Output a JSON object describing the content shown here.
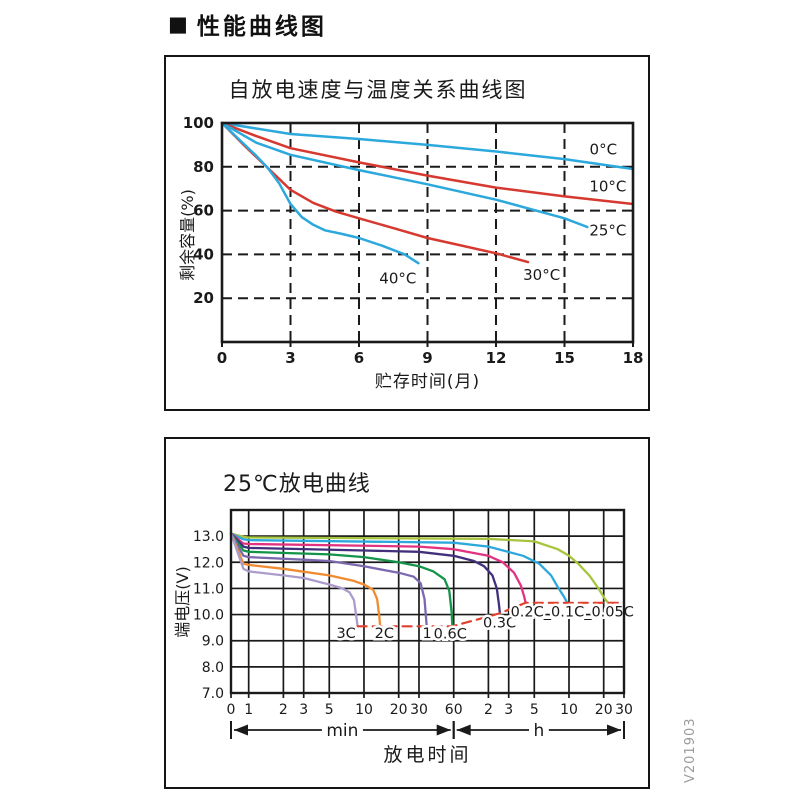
{
  "page": {
    "header": {
      "bullet": "■",
      "title": "性能曲线图"
    },
    "watermark": "V201903"
  },
  "chart_data": [
    {
      "type": "line",
      "title": "自放电速度与温度关系曲线图",
      "xlabel": "贮存时间(月)",
      "ylabel": "剩余容量(%)",
      "xlim": [
        0,
        18
      ],
      "ylim": [
        0,
        100
      ],
      "xticks": [
        0,
        3,
        6,
        9,
        12,
        15,
        18
      ],
      "yticks": [
        20,
        40,
        60,
        80,
        100
      ],
      "grid": "dashed",
      "axis_color": "#1a1a1a",
      "series": [
        {
          "name": "0°C",
          "color": "#2BA8DC",
          "points": [
            [
              0,
              100
            ],
            [
              3,
              95
            ],
            [
              6,
              92.7
            ],
            [
              9,
              90
            ],
            [
              12,
              87
            ],
            [
              15,
              83.5
            ],
            [
              18,
              79
            ]
          ],
          "label_at": [
            16.7,
            88
          ]
        },
        {
          "name": "10°C",
          "color": "#D6392F",
          "points": [
            [
              0,
              100
            ],
            [
              1.5,
              94
            ],
            [
              3,
              88.5
            ],
            [
              6,
              82
            ],
            [
              9,
              76
            ],
            [
              12,
              70.5
            ],
            [
              15,
              66.5
            ],
            [
              18,
              63
            ]
          ],
          "label_at": [
            16.9,
            71
          ]
        },
        {
          "name": "25°C",
          "color": "#2BA8DC",
          "points": [
            [
              0,
              100
            ],
            [
              1.5,
              91
            ],
            [
              3,
              85.5
            ],
            [
              6,
              78.5
            ],
            [
              9,
              72
            ],
            [
              12,
              65
            ],
            [
              15,
              56.5
            ],
            [
              16,
              52.5
            ]
          ],
          "label_at": [
            16.9,
            51
          ]
        },
        {
          "name": "30°C",
          "color": "#D6392F",
          "points": [
            [
              0,
              100
            ],
            [
              1,
              89.5
            ],
            [
              2,
              79.5
            ],
            [
              3,
              69.5
            ],
            [
              4,
              63.5
            ],
            [
              5,
              59.5
            ],
            [
              6,
              56.5
            ],
            [
              7.5,
              52
            ],
            [
              9,
              47.5
            ],
            [
              10.5,
              44
            ],
            [
              12,
              40.5
            ],
            [
              13.4,
              36.5
            ]
          ],
          "label_at": [
            14,
            30.5
          ]
        },
        {
          "name": "40°C",
          "color": "#2BA8DC",
          "points": [
            [
              0,
              100
            ],
            [
              0.5,
              95
            ],
            [
              1,
              90
            ],
            [
              1.5,
              85
            ],
            [
              2,
              79.5
            ],
            [
              2.5,
              72.5
            ],
            [
              3,
              63
            ],
            [
              3.5,
              57
            ],
            [
              4,
              53.5
            ],
            [
              4.5,
              51
            ],
            [
              5.2,
              49.5
            ],
            [
              6,
              47.5
            ],
            [
              7,
              44
            ],
            [
              8,
              40
            ],
            [
              8.6,
              36
            ]
          ],
          "label_at": [
            7.7,
            29
          ]
        }
      ]
    },
    {
      "type": "line",
      "title": "25℃放电曲线",
      "xlabel": "放电时间",
      "ylabel": "端电压(V)",
      "ylim": [
        7,
        14
      ],
      "yticks": [
        7,
        8,
        9,
        10,
        11,
        12,
        13
      ],
      "ytick_format": "one_decimal",
      "grid": "solid",
      "axis_color": "#1a1a1a",
      "x_axis": {
        "scale": "log-time-minutes",
        "ticks": [
          {
            "label": "0",
            "t": 0
          },
          {
            "label": "1",
            "t": 1
          },
          {
            "label": "2",
            "t": 2
          },
          {
            "label": "3",
            "t": 3
          },
          {
            "label": "5",
            "t": 5
          },
          {
            "label": "10",
            "t": 10
          },
          {
            "label": "20",
            "t": 20
          },
          {
            "label": "30",
            "t": 30
          },
          {
            "label": "60",
            "t": 60
          },
          {
            "label": "2",
            "t": 120
          },
          {
            "label": "3",
            "t": 180
          },
          {
            "label": "5",
            "t": 300
          },
          {
            "label": "10",
            "t": 600
          },
          {
            "label": "20",
            "t": 1200
          },
          {
            "label": "30",
            "t": 1800
          }
        ],
        "unit_spans": [
          {
            "label": "min",
            "from_t": 0,
            "to_t": 60
          },
          {
            "label": "h",
            "from_t": 60,
            "to_t": 1800
          }
        ]
      },
      "series": [
        {
          "name": "0.05C",
          "color": "#A6C53C",
          "points": [
            [
              0,
              13.1
            ],
            [
              0.7,
              12.97
            ],
            [
              1,
              12.95
            ],
            [
              120,
              12.9
            ],
            [
              300,
              12.8
            ],
            [
              480,
              12.5
            ],
            [
              600,
              12.25
            ],
            [
              720,
              11.95
            ],
            [
              900,
              11.5
            ],
            [
              1080,
              11.0
            ],
            [
              1230,
              10.6
            ],
            [
              1310,
              10.45
            ]
          ]
        },
        {
          "name": "0.1C",
          "color": "#2CA8DC",
          "points": [
            [
              0,
              13.1
            ],
            [
              0.7,
              12.88
            ],
            [
              1,
              12.85
            ],
            [
              60,
              12.75
            ],
            [
              120,
              12.6
            ],
            [
              240,
              12.25
            ],
            [
              330,
              11.95
            ],
            [
              420,
              11.5
            ],
            [
              480,
              11.05
            ],
            [
              540,
              10.7
            ],
            [
              580,
              10.45
            ]
          ]
        },
        {
          "name": "0.2C",
          "color": "#E23381",
          "points": [
            [
              0,
              13.1
            ],
            [
              0.7,
              12.72
            ],
            [
              1,
              12.7
            ],
            [
              30,
              12.6
            ],
            [
              60,
              12.5
            ],
            [
              120,
              12.25
            ],
            [
              160,
              12.0
            ],
            [
              200,
              11.6
            ],
            [
              230,
              11.1
            ],
            [
              245,
              10.7
            ],
            [
              252,
              10.45
            ]
          ]
        },
        {
          "name": "0.3C",
          "color": "#42307C",
          "points": [
            [
              0,
              13.1
            ],
            [
              0.7,
              12.6
            ],
            [
              1,
              12.55
            ],
            [
              10,
              12.45
            ],
            [
              30,
              12.4
            ],
            [
              60,
              12.25
            ],
            [
              90,
              12.05
            ],
            [
              110,
              11.85
            ],
            [
              130,
              11.5
            ],
            [
              142,
              11.0
            ],
            [
              148,
              10.4
            ],
            [
              151,
              10.05
            ]
          ]
        },
        {
          "name": "0.6C",
          "color": "#149448",
          "points": [
            [
              0,
              13.1
            ],
            [
              0.7,
              12.45
            ],
            [
              1,
              12.4
            ],
            [
              5,
              12.3
            ],
            [
              10,
              12.2
            ],
            [
              20,
              12.0
            ],
            [
              30,
              11.85
            ],
            [
              40,
              11.65
            ],
            [
              50,
              11.35
            ],
            [
              55,
              10.9
            ],
            [
              57.5,
              10.1
            ],
            [
              58.5,
              9.55
            ]
          ]
        },
        {
          "name": "1C",
          "color": "#7B68AE",
          "points": [
            [
              0,
              13.1
            ],
            [
              0.7,
              12.25
            ],
            [
              1,
              12.2
            ],
            [
              3,
              12.1
            ],
            [
              5,
              12.05
            ],
            [
              10,
              11.85
            ],
            [
              15,
              11.7
            ],
            [
              20,
              11.6
            ],
            [
              27,
              11.45
            ],
            [
              31,
              11.2
            ],
            [
              33.5,
              10.6
            ],
            [
              34.5,
              9.9
            ],
            [
              35,
              9.55
            ]
          ]
        },
        {
          "name": "2C",
          "color": "#EF8B31",
          "points": [
            [
              0,
              13.1
            ],
            [
              0.7,
              11.95
            ],
            [
              1,
              11.9
            ],
            [
              2,
              11.75
            ],
            [
              5,
              11.5
            ],
            [
              8,
              11.3
            ],
            [
              10,
              11.15
            ],
            [
              12,
              10.95
            ],
            [
              13,
              10.6
            ],
            [
              13.6,
              9.9
            ],
            [
              13.8,
              9.55
            ]
          ]
        },
        {
          "name": "3C",
          "color": "#AB9CCC",
          "points": [
            [
              0,
              13.1
            ],
            [
              0.7,
              11.75
            ],
            [
              1,
              11.65
            ],
            [
              2,
              11.5
            ],
            [
              3,
              11.4
            ],
            [
              5,
              11.15
            ],
            [
              6.5,
              11.0
            ],
            [
              7.5,
              10.85
            ],
            [
              8.2,
              10.55
            ],
            [
              8.6,
              9.9
            ],
            [
              8.8,
              9.55
            ]
          ]
        }
      ],
      "cutoff_line": {
        "color": "#E2402E",
        "style": "dashed",
        "points": [
          [
            8.8,
            9.55
          ],
          [
            58.5,
            9.55
          ],
          [
            151,
            10.05
          ],
          [
            252,
            10.45
          ],
          [
            1800,
            10.45
          ]
        ]
      },
      "labels": [
        {
          "text": "3C",
          "t": 7,
          "v": 9.3
        },
        {
          "text": "2C",
          "t": 15,
          "v": 9.3
        },
        {
          "text": "1C",
          "t": 39,
          "v": 9.3
        },
        {
          "text": "0.6C",
          "t": 56,
          "v": 9.27
        },
        {
          "text": "0.3C",
          "t": 150,
          "v": 9.7
        },
        {
          "text": "0.2C_0.1C_0.05C",
          "t": 640,
          "v": 10.12
        }
      ]
    }
  ]
}
